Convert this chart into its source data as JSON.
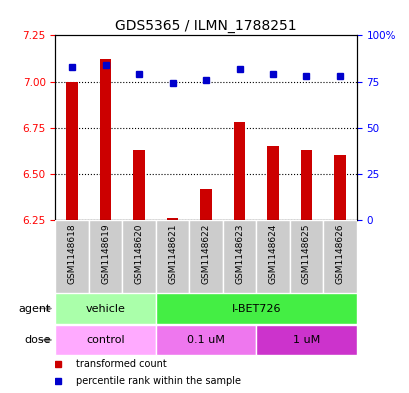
{
  "title": "GDS5365 / ILMN_1788251",
  "samples": [
    "GSM1148618",
    "GSM1148619",
    "GSM1148620",
    "GSM1148621",
    "GSM1148622",
    "GSM1148623",
    "GSM1148624",
    "GSM1148625",
    "GSM1148626"
  ],
  "bar_values": [
    7.0,
    7.12,
    6.63,
    6.26,
    6.42,
    6.78,
    6.65,
    6.63,
    6.6
  ],
  "percentile_values": [
    83,
    84,
    79,
    74,
    76,
    82,
    79,
    78,
    78
  ],
  "ylim": [
    6.25,
    7.25
  ],
  "yticks": [
    6.25,
    6.5,
    6.75,
    7.0,
    7.25
  ],
  "right_yticks": [
    0,
    25,
    50,
    75,
    100
  ],
  "right_ylim": [
    0,
    100
  ],
  "bar_color": "#cc0000",
  "dot_color": "#0000cc",
  "plot_bg": "#ffffff",
  "cell_bg": "#cccccc",
  "agent_labels": [
    {
      "label": "vehicle",
      "start": 0,
      "end": 3,
      "color": "#aaffaa"
    },
    {
      "label": "I-BET726",
      "start": 3,
      "end": 9,
      "color": "#44ee44"
    }
  ],
  "dose_labels": [
    {
      "label": "control",
      "start": 0,
      "end": 3,
      "color": "#ffaaff"
    },
    {
      "label": "0.1 uM",
      "start": 3,
      "end": 6,
      "color": "#ee77ee"
    },
    {
      "label": "1 uM",
      "start": 6,
      "end": 9,
      "color": "#cc33cc"
    }
  ],
  "legend_bar_label": "transformed count",
  "legend_dot_label": "percentile rank within the sample",
  "title_fontsize": 10,
  "tick_fontsize": 7.5,
  "sample_fontsize": 6.5,
  "row_label_fontsize": 8,
  "row_text_fontsize": 8,
  "legend_fontsize": 7
}
